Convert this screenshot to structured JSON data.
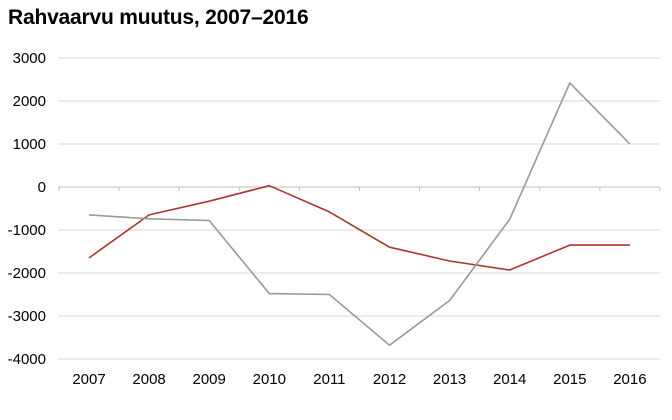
{
  "title": "Rahvaarvu muutus, 2007–2016",
  "chart_data": {
    "type": "line",
    "title": "Rahvaarvu muutus, 2007–2016",
    "xlabel": "",
    "ylabel": "",
    "categories": [
      "2007",
      "2008",
      "2009",
      "2010",
      "2011",
      "2012",
      "2013",
      "2014",
      "2015",
      "2016"
    ],
    "ylim": [
      -4000,
      3000
    ],
    "yticks": [
      3000,
      2000,
      1000,
      0,
      -1000,
      -2000,
      -3000,
      -4000
    ],
    "grid": true,
    "legend": "none",
    "series": [
      {
        "color": "#a8382a",
        "values": [
          -1650,
          -650,
          -330,
          30,
          -580,
          -1400,
          -1720,
          -1930,
          -1350,
          -1350
        ]
      },
      {
        "color": "#999999",
        "values": [
          -650,
          -740,
          -780,
          -2480,
          -2500,
          -3680,
          -2640,
          -750,
          2420,
          1000
        ]
      }
    ]
  }
}
